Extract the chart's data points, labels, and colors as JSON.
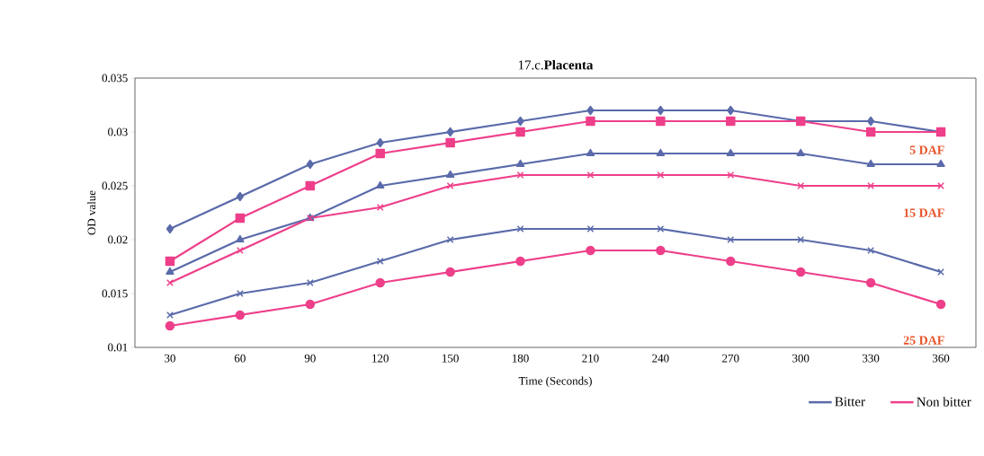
{
  "chart_data": {
    "type": "line",
    "title": "17.c.**Placenta**",
    "xlabel": "Time (Seconds)",
    "ylabel": "OD value",
    "categories": [
      "30",
      "60",
      "90",
      "120",
      "150",
      "180",
      "210",
      "240",
      "270",
      "300",
      "330",
      "360"
    ],
    "ylim": [
      0.01,
      0.035
    ],
    "yticks": [
      0.01,
      0.015,
      0.02,
      0.025,
      0.03,
      0.035
    ],
    "legend": "bottom right",
    "grid": false,
    "series": [
      {
        "name": "Bitter",
        "color": "#5a6aaa",
        "marker": "diamond",
        "values": [
          0.021,
          0.024,
          0.027,
          0.029,
          0.03,
          0.031,
          0.032,
          0.032,
          0.032,
          0.031,
          0.031,
          0.03
        ]
      },
      {
        "name": "Non bitter",
        "color": "#ee3f8a",
        "marker": "square",
        "values": [
          0.018,
          0.022,
          0.025,
          0.028,
          0.029,
          0.03,
          0.031,
          0.031,
          0.031,
          0.031,
          0.03,
          0.03
        ]
      },
      {
        "color": "#5a6aaa",
        "marker": "triangle",
        "values": [
          0.017,
          0.02,
          0.022,
          0.025,
          0.026,
          0.027,
          0.028,
          0.028,
          0.028,
          0.028,
          0.027,
          0.027
        ]
      },
      {
        "color": "#ee3f8a",
        "marker": "cross",
        "values": [
          0.016,
          0.019,
          0.022,
          0.023,
          0.025,
          0.026,
          0.026,
          0.026,
          0.026,
          0.025,
          0.025,
          0.025
        ]
      },
      {
        "color": "#5a6aaa",
        "marker": "cross",
        "values": [
          0.013,
          0.015,
          0.016,
          0.018,
          0.02,
          0.021,
          0.021,
          0.021,
          0.02,
          0.02,
          0.019,
          0.017
        ]
      },
      {
        "color": "#ee3f8a",
        "marker": "circle",
        "values": [
          0.012,
          0.013,
          0.014,
          0.016,
          0.017,
          0.018,
          0.019,
          0.019,
          0.018,
          0.017,
          0.016,
          0.014
        ]
      }
    ],
    "annotations": [
      "5 DAF",
      "15 DAF",
      "25 DAF"
    ]
  }
}
